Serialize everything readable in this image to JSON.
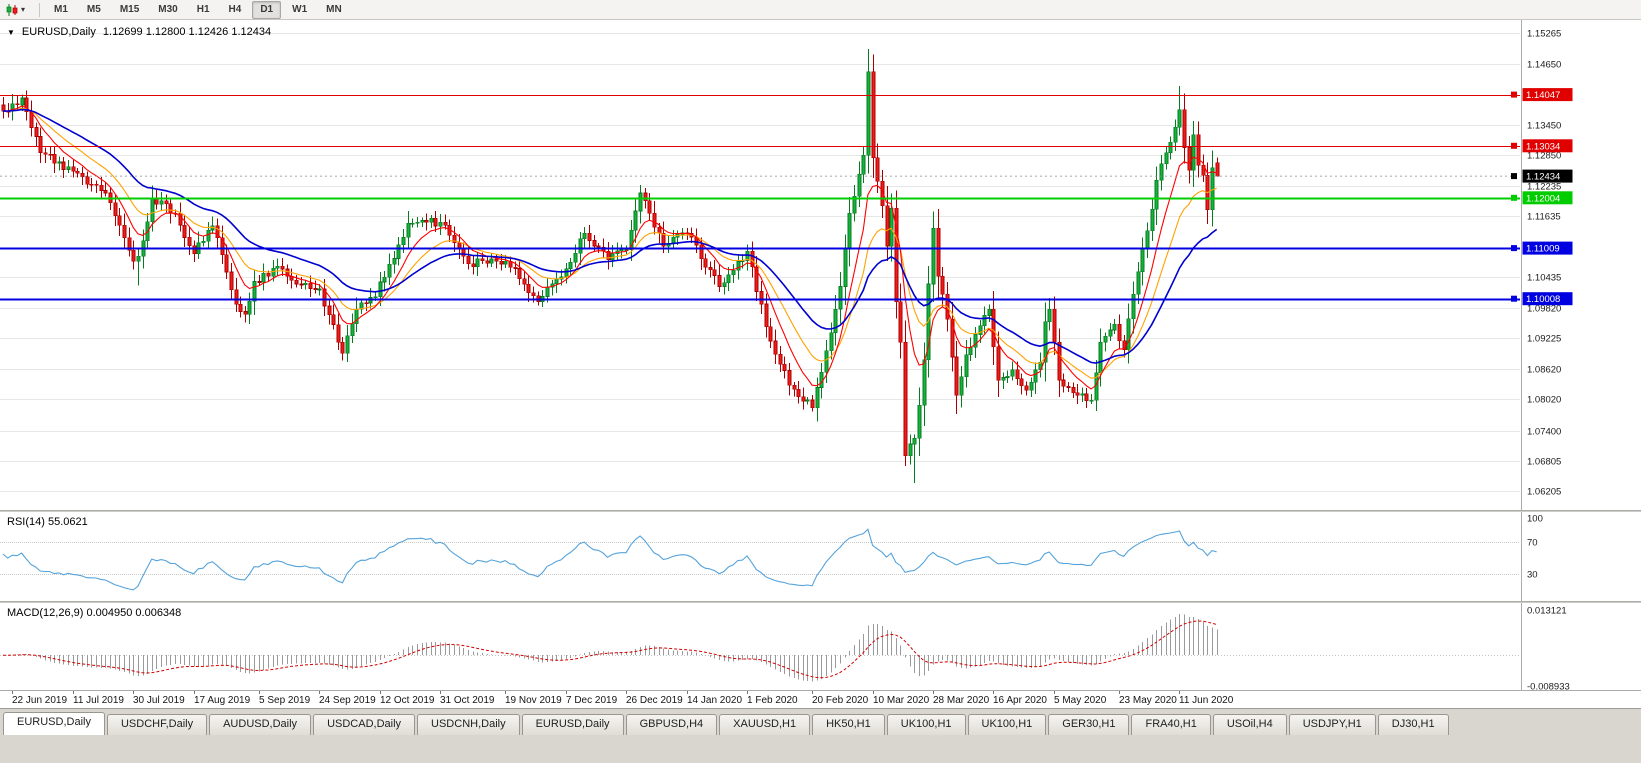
{
  "toolbar": {
    "dropdown_caret": "▾",
    "periods": [
      {
        "label": "M1"
      },
      {
        "label": "M5"
      },
      {
        "label": "M15"
      },
      {
        "label": "M30"
      },
      {
        "label": "H1"
      },
      {
        "label": "H4"
      },
      {
        "label": "D1",
        "active": true
      },
      {
        "label": "W1"
      },
      {
        "label": "MN"
      }
    ]
  },
  "chart": {
    "symbol_dropdown_icon": "▼",
    "title": "EURUSD,Daily",
    "ohlc_text": "1.12699 1.12800 1.12426 1.12434",
    "price_range": {
      "top": 1.15265,
      "bottom": 1.06205
    },
    "grid_prices": [
      1.15265,
      1.1465,
      1.1404,
      1.1345,
      1.1285,
      1.12235,
      1.11635,
      1.1102,
      1.10435,
      1.0982,
      1.09225,
      1.0862,
      1.0802,
      1.074,
      1.06805,
      1.06205
    ],
    "axis_labels": [
      "1.15265",
      "1.14650",
      "1.13450",
      "1.12850",
      "1.12235",
      "1.11635",
      "1.10435",
      "1.09820",
      "1.09225",
      "1.08620",
      "1.08020",
      "1.07400",
      "1.06805",
      "1.06205"
    ],
    "levels": [
      {
        "label": "1.14047",
        "value": 1.14047,
        "color": "#E00000",
        "width": 1
      },
      {
        "label": "1.13034",
        "value": 1.13034,
        "color": "#E00000",
        "width": 1
      },
      {
        "label": "1.12004",
        "value": 1.12004,
        "color": "#00CC00",
        "width": 2
      },
      {
        "label": "1.11009",
        "value": 1.11009,
        "color": "#0000E0",
        "width": 2
      },
      {
        "label": "1.10008",
        "value": 1.10008,
        "color": "#0000E0",
        "width": 2
      }
    ],
    "current_price": {
      "label": "1.12434",
      "value": 1.12434,
      "color": "#000000"
    },
    "colors": {
      "grid": "#E7E7E7",
      "axis_text": "#1b1b1b",
      "bull": "#12B53A",
      "bull_border": "#077A22",
      "bear": "#F31A1A",
      "bear_border": "#A80000",
      "ma_fast": "#FF0000",
      "ma_mid": "#FFA200",
      "ma_slow": "#0000D0",
      "rsi": "#55A3DB",
      "macd_hist": "#9A9A9A",
      "macd_signal": "#D40000"
    }
  },
  "rsi": {
    "label": "RSI(14) 55.0621",
    "period": 14,
    "current": 55.0621,
    "axis_labels": [
      {
        "text": "100",
        "value": 100
      },
      {
        "text": "70",
        "value": 70
      },
      {
        "text": "30",
        "value": 30
      }
    ],
    "level_lines": [
      70,
      30
    ]
  },
  "macd": {
    "label": "MACD(12,26,9) 0.004950 0.006348",
    "params": [
      12,
      26,
      9
    ],
    "current_macd": 0.00495,
    "current_signal": 0.006348,
    "range": {
      "top": 0.013121,
      "bottom": -0.008933
    },
    "axis_labels": [
      {
        "text": "0.013121",
        "value": 0.013121
      },
      {
        "text": "-0.008933",
        "value": -0.008933
      }
    ]
  },
  "date_axis": [
    {
      "label": "22 Jun 2019",
      "i": 2
    },
    {
      "label": "11 Jul 2019",
      "i": 15
    },
    {
      "label": "30 Jul 2019",
      "i": 28
    },
    {
      "label": "17 Aug 2019",
      "i": 41
    },
    {
      "label": "5 Sep 2019",
      "i": 55
    },
    {
      "label": "24 Sep 2019",
      "i": 68
    },
    {
      "label": "12 Oct 2019",
      "i": 81
    },
    {
      "label": "31 Oct 2019",
      "i": 94
    },
    {
      "label": "19 Nov 2019",
      "i": 108
    },
    {
      "label": "7 Dec 2019",
      "i": 121
    },
    {
      "label": "26 Dec 2019",
      "i": 134
    },
    {
      "label": "14 Jan 2020",
      "i": 147
    },
    {
      "label": "1 Feb 2020",
      "i": 160
    },
    {
      "label": "20 Feb 2020",
      "i": 174
    },
    {
      "label": "10 Mar 2020",
      "i": 187
    },
    {
      "label": "28 Mar 2020",
      "i": 200
    },
    {
      "label": "16 Apr 2020",
      "i": 213
    },
    {
      "label": "5 May 2020",
      "i": 226
    },
    {
      "label": "23 May 2020",
      "i": 240
    },
    {
      "label": "11 Jun 2020",
      "i": 253
    }
  ],
  "tabs": [
    {
      "label": "EURUSD,Daily",
      "active": true
    },
    {
      "label": "USDCHF,Daily"
    },
    {
      "label": "AUDUSD,Daily"
    },
    {
      "label": "USDCAD,Daily"
    },
    {
      "label": "USDCNH,Daily"
    },
    {
      "label": "EURUSD,Daily"
    },
    {
      "label": "GBPUSD,H4"
    },
    {
      "label": "XAUUSD,H1"
    },
    {
      "label": "HK50,H1"
    },
    {
      "label": "UK100,H1"
    },
    {
      "label": "UK100,H1"
    },
    {
      "label": "GER30,H1"
    },
    {
      "label": "FRA40,H1"
    },
    {
      "label": "USOil,H4"
    },
    {
      "label": "USDJPY,H1"
    },
    {
      "label": "DJ30,H1"
    }
  ],
  "chart_data": {
    "type": "candlestick",
    "symbol": "EURUSD",
    "timeframe": "Daily",
    "current_ohlc": {
      "open": 1.12699,
      "high": 1.128,
      "low": 1.12426,
      "close": 1.12434
    },
    "candle_count": 262,
    "candle_spacing": 4.65,
    "x_range": [
      "22 Jun 2019",
      "23 Jun 2020"
    ],
    "y_range": [
      1.06205,
      1.15265
    ],
    "horizontal_levels": [
      1.14047,
      1.13034,
      1.12004,
      1.11009,
      1.10008
    ],
    "close_waypoints": [
      [
        0,
        1.1372
      ],
      [
        4,
        1.1398
      ],
      [
        8,
        1.129
      ],
      [
        15,
        1.1253
      ],
      [
        22,
        1.121
      ],
      [
        28,
        1.1075
      ],
      [
        29,
        1.1085
      ],
      [
        32,
        1.12
      ],
      [
        37,
        1.117
      ],
      [
        41,
        1.109
      ],
      [
        45,
        1.1145
      ],
      [
        50,
        1.099
      ],
      [
        52,
        1.097
      ],
      [
        54,
        1.1035
      ],
      [
        59,
        1.1065
      ],
      [
        63,
        1.103
      ],
      [
        68,
        1.102
      ],
      [
        73,
        1.0893
      ],
      [
        76,
        1.098
      ],
      [
        80,
        1.1005
      ],
      [
        87,
        1.115
      ],
      [
        94,
        1.1152
      ],
      [
        100,
        1.107
      ],
      [
        108,
        1.1075
      ],
      [
        115,
        1.0995
      ],
      [
        121,
        1.106
      ],
      [
        125,
        1.113
      ],
      [
        130,
        1.1078
      ],
      [
        134,
        1.1098
      ],
      [
        137,
        1.121
      ],
      [
        142,
        1.1105
      ],
      [
        147,
        1.113
      ],
      [
        154,
        1.1025
      ],
      [
        160,
        1.1095
      ],
      [
        164,
        1.0945
      ],
      [
        169,
        1.083
      ],
      [
        174,
        1.0785
      ],
      [
        176,
        1.0855
      ],
      [
        180,
        1.1025
      ],
      [
        182,
        1.117
      ],
      [
        185,
        1.1285
      ],
      [
        186,
        1.145
      ],
      [
        187,
        1.128
      ],
      [
        189,
        1.1185
      ],
      [
        190,
        1.1105
      ],
      [
        191,
        1.118
      ],
      [
        192,
        1.0995
      ],
      [
        193,
        1.0915
      ],
      [
        194,
        1.069
      ],
      [
        196,
        1.0725
      ],
      [
        197,
        1.079
      ],
      [
        198,
        1.088
      ],
      [
        199,
        1.103
      ],
      [
        200,
        1.114
      ],
      [
        201,
        1.1045
      ],
      [
        203,
        1.096
      ],
      [
        205,
        1.081
      ],
      [
        207,
        1.089
      ],
      [
        209,
        1.093
      ],
      [
        212,
        1.098
      ],
      [
        214,
        1.084
      ],
      [
        217,
        1.086
      ],
      [
        220,
        1.082
      ],
      [
        223,
        1.0875
      ],
      [
        224,
        1.0955
      ],
      [
        225,
        1.098
      ],
      [
        227,
        1.084
      ],
      [
        231,
        1.081
      ],
      [
        234,
        1.08
      ],
      [
        236,
        1.0915
      ],
      [
        239,
        1.095
      ],
      [
        241,
        1.09
      ],
      [
        243,
        1.101
      ],
      [
        245,
        1.11
      ],
      [
        246,
        1.1135
      ],
      [
        248,
        1.1235
      ],
      [
        250,
        1.129
      ],
      [
        252,
        1.134
      ],
      [
        253,
        1.1375
      ],
      [
        254,
        1.13
      ],
      [
        255,
        1.1255
      ],
      [
        256,
        1.1325
      ],
      [
        257,
        1.1265
      ],
      [
        258,
        1.1245
      ],
      [
        259,
        1.1177
      ],
      [
        260,
        1.126
      ],
      [
        261,
        1.1243
      ]
    ],
    "extremes": [
      {
        "i": 4,
        "high": 1.1405
      },
      {
        "i": 29,
        "low": 1.1027
      },
      {
        "i": 73,
        "low": 1.0879
      },
      {
        "i": 174,
        "low": 1.0778
      },
      {
        "i": 186,
        "high": 1.1495
      },
      {
        "i": 194,
        "low": 1.067
      },
      {
        "i": 196,
        "low": 1.0636
      },
      {
        "i": 253,
        "high": 1.1422
      }
    ],
    "indicators": [
      {
        "name": "RSI",
        "period": 14,
        "current": 55.0621
      },
      {
        "name": "MACD",
        "fast": 12,
        "slow": 26,
        "signal": 9,
        "current_macd": 0.00495,
        "current_signal": 0.006348
      },
      {
        "name": "MA-fast",
        "color": "#FF0000"
      },
      {
        "name": "MA-mid",
        "color": "#FFA200"
      },
      {
        "name": "MA-slow",
        "color": "#0000D0"
      }
    ]
  }
}
